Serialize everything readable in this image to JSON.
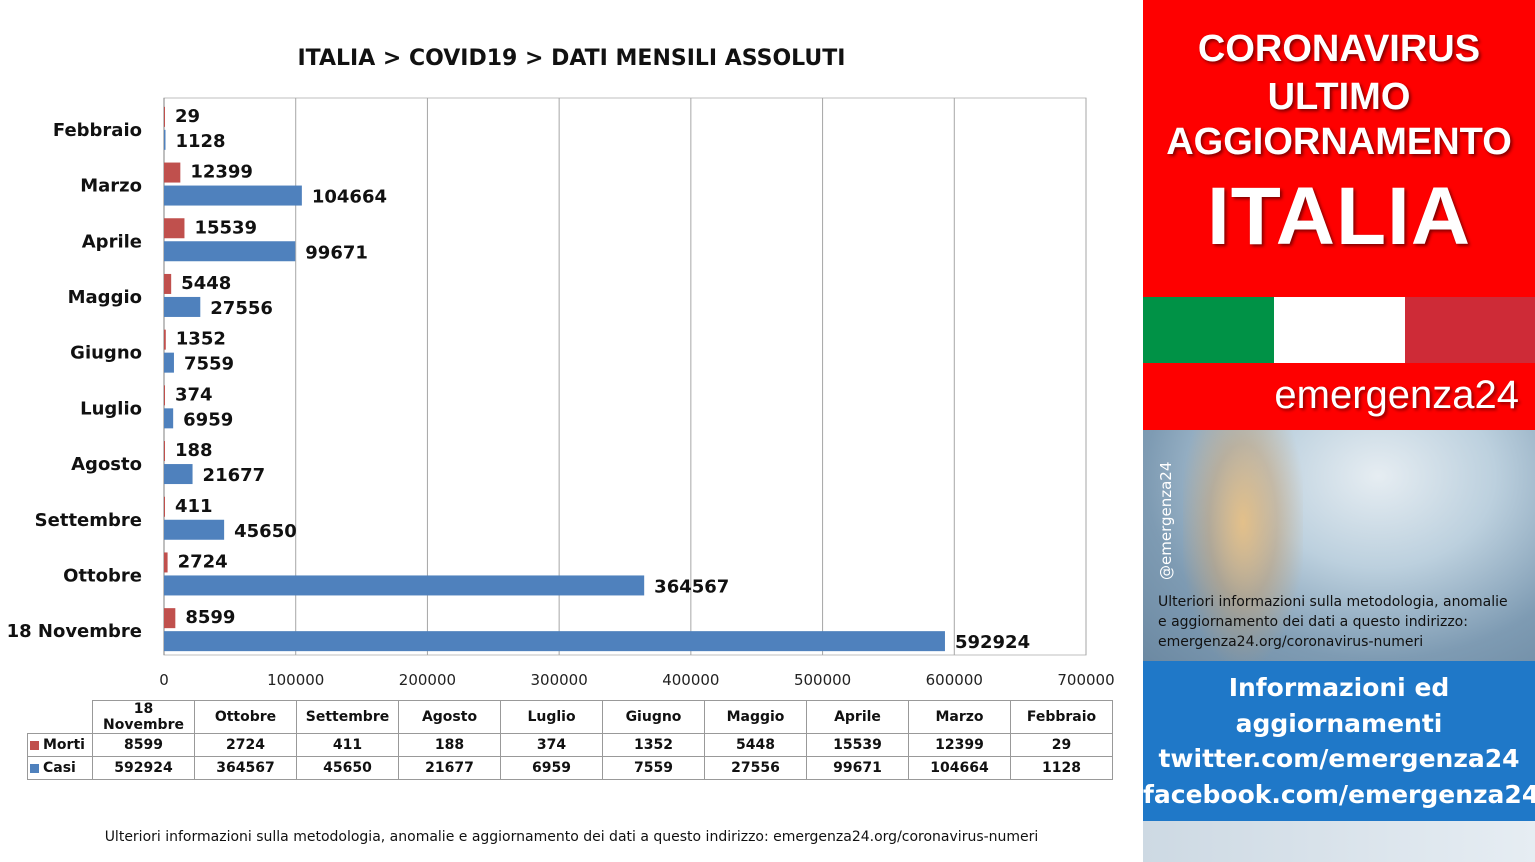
{
  "chart_data": {
    "type": "bar",
    "orientation": "horizontal",
    "title": "ITALIA >  COVID19 > DATI MENSILI  ASSOLUTI",
    "categories": [
      "Febbraio",
      "Marzo",
      "Aprile",
      "Maggio",
      "Giugno",
      "Luglio",
      "Agosto",
      "Settembre",
      "Ottobre",
      "18 Novembre"
    ],
    "series": [
      {
        "name": "Morti",
        "color": "#c0504d",
        "values": [
          29,
          12399,
          15539,
          5448,
          1352,
          374,
          188,
          411,
          2724,
          8599
        ]
      },
      {
        "name": "Casi",
        "color": "#4f81bd",
        "values": [
          1128,
          104664,
          99671,
          27556,
          7559,
          6959,
          21677,
          45650,
          364567,
          592924
        ]
      }
    ],
    "xlim": [
      0,
      700000
    ],
    "x_ticks": [
      0,
      100000,
      200000,
      300000,
      400000,
      500000,
      600000,
      700000
    ],
    "grid": "vertical"
  },
  "table": {
    "headers": [
      "18 Novembre",
      "Ottobre",
      "Settembre",
      "Agosto",
      "Luglio",
      "Giugno",
      "Maggio",
      "Aprile",
      "Marzo",
      "Febbraio"
    ],
    "rows": [
      {
        "label": "Morti",
        "color": "#c0504d",
        "values": [
          "8599",
          "2724",
          "411",
          "188",
          "374",
          "1352",
          "5448",
          "15539",
          "12399",
          "29"
        ]
      },
      {
        "label": "Casi",
        "color": "#4f81bd",
        "values": [
          "592924",
          "364567",
          "45650",
          "21677",
          "6959",
          "7559",
          "27556",
          "99671",
          "104664",
          "1128"
        ]
      }
    ]
  },
  "bottom_note": "Ulteriori informazioni sulla metodologia, anomalie e aggiornamento dei dati a questo indirizzo: emergenza24.org/coronavirus-numeri",
  "side": {
    "header_lines": [
      "CORONAVIRUS",
      "ULTIMO",
      "AGGIORNAMENTO",
      "ITALIA"
    ],
    "flag_colors": [
      "#009246",
      "#ffffff",
      "#ce2b37"
    ],
    "brand": "emergenza24",
    "handle": "@emergenza24",
    "note_lines": [
      "Ulteriori informazioni sulla metodologia, anomalie",
      "e aggiornamento dei dati a questo indirizzo:",
      "emergenza24.org/coronavirus-numeri"
    ],
    "info_lines": [
      "Informazioni ed",
      "aggiornamenti",
      "twitter.com/emergenza24",
      "facebook.com/emergenza24"
    ]
  }
}
